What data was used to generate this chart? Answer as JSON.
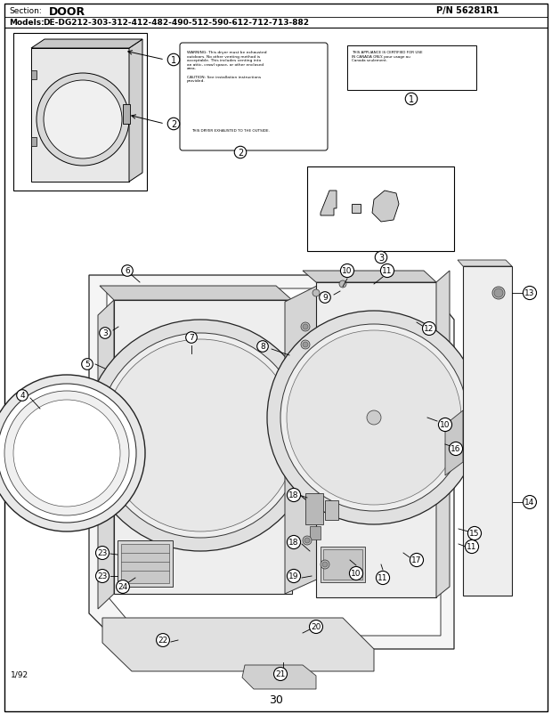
{
  "title_section": "Section:",
  "title_section_value": "DOOR",
  "title_pn": "P/N 56281R1",
  "title_models": "Models:   DE-DG212-303-312-412-482-490-512-590-612-712-713-882",
  "page_number": "30",
  "date": "1/92",
  "background_color": "#ffffff",
  "border_color": "#000000",
  "text_color": "#000000"
}
